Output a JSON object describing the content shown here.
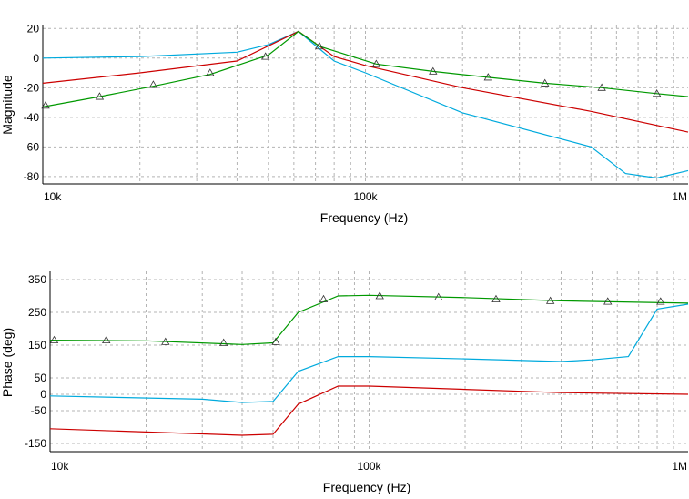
{
  "chart_data": [
    {
      "type": "line",
      "xscale": "log",
      "xlabel": "Frequency (Hz)",
      "ylabel": "Magnitude",
      "xlim": [
        10000,
        1000000
      ],
      "ylim": [
        -85,
        22
      ],
      "grid": true,
      "x_ticks": [
        {
          "value": 10000,
          "label": "10k"
        },
        {
          "value": 100000,
          "label": "100k"
        },
        {
          "value": 1000000,
          "label": "1M"
        }
      ],
      "y_ticks": [
        {
          "value": 20,
          "label": "20"
        },
        {
          "value": 0,
          "label": "0"
        },
        {
          "value": -20,
          "label": "-20"
        },
        {
          "value": -40,
          "label": "-40"
        },
        {
          "value": -60,
          "label": "-60"
        },
        {
          "value": -80,
          "label": "-80"
        }
      ],
      "series": [
        {
          "color": "#00aadd",
          "marker": "none",
          "points": [
            [
              10000,
              0
            ],
            [
              20000,
              1
            ],
            [
              40000,
              4
            ],
            [
              50000,
              9
            ],
            [
              62000,
              18
            ],
            [
              80000,
              -2
            ],
            [
              100000,
              -10
            ],
            [
              200000,
              -37
            ],
            [
              500000,
              -60
            ],
            [
              640000,
              -78
            ],
            [
              800000,
              -81
            ],
            [
              1000000,
              -76
            ]
          ]
        },
        {
          "color": "#cc0000",
          "marker": "none",
          "points": [
            [
              10000,
              -17
            ],
            [
              20000,
              -10
            ],
            [
              40000,
              -2
            ],
            [
              62000,
              18
            ],
            [
              80000,
              1
            ],
            [
              100000,
              -5
            ],
            [
              200000,
              -20
            ],
            [
              500000,
              -36
            ],
            [
              1000000,
              -50
            ]
          ]
        },
        {
          "color": "#009900",
          "marker": "triangle",
          "points": [
            [
              10000,
              -33
            ],
            [
              15000,
              -26
            ],
            [
              22000,
              -19
            ],
            [
              33000,
              -11
            ],
            [
              50000,
              2
            ],
            [
              62000,
              18
            ],
            [
              72000,
              8
            ],
            [
              108000,
              -4
            ],
            [
              162000,
              -9
            ],
            [
              240000,
              -13
            ],
            [
              360000,
              -17
            ],
            [
              540000,
              -20
            ],
            [
              800000,
              -24
            ],
            [
              1000000,
              -26
            ]
          ],
          "marker_points": [
            [
              10200,
              -32
            ],
            [
              15000,
              -26
            ],
            [
              22000,
              -18
            ],
            [
              33000,
              -10
            ],
            [
              49000,
              1
            ],
            [
              72000,
              8
            ],
            [
              108000,
              -4
            ],
            [
              162000,
              -9
            ],
            [
              240000,
              -13
            ],
            [
              360000,
              -17
            ],
            [
              540000,
              -20
            ],
            [
              800000,
              -24
            ]
          ]
        }
      ]
    },
    {
      "type": "line",
      "xscale": "log",
      "xlabel": "Frequency (Hz)",
      "ylabel": "Phase (deg)",
      "xlim": [
        10000,
        1000000
      ],
      "ylim": [
        -175,
        375
      ],
      "grid": true,
      "x_ticks": [
        {
          "value": 10000,
          "label": "10k"
        },
        {
          "value": 100000,
          "label": "100k"
        },
        {
          "value": 1000000,
          "label": "1M"
        }
      ],
      "y_ticks": [
        {
          "value": 350,
          "label": "350"
        },
        {
          "value": 250,
          "label": "250"
        },
        {
          "value": 150,
          "label": "150"
        },
        {
          "value": 50,
          "label": "50"
        },
        {
          "value": 0,
          "label": "0"
        },
        {
          "value": -50,
          "label": "-50"
        },
        {
          "value": -150,
          "label": "-150"
        }
      ],
      "series": [
        {
          "color": "#00aadd",
          "marker": "none",
          "points": [
            [
              10000,
              -5
            ],
            [
              30000,
              -15
            ],
            [
              40000,
              -25
            ],
            [
              50000,
              -22
            ],
            [
              60000,
              70
            ],
            [
              80000,
              115
            ],
            [
              100000,
              115
            ],
            [
              200000,
              108
            ],
            [
              400000,
              100
            ],
            [
              500000,
              105
            ],
            [
              650000,
              115
            ],
            [
              800000,
              260
            ],
            [
              1000000,
              275
            ]
          ]
        },
        {
          "color": "#cc0000",
          "marker": "none",
          "points": [
            [
              10000,
              -105
            ],
            [
              20000,
              -115
            ],
            [
              40000,
              -125
            ],
            [
              50000,
              -122
            ],
            [
              60000,
              -30
            ],
            [
              80000,
              25
            ],
            [
              100000,
              25
            ],
            [
              200000,
              15
            ],
            [
              400000,
              5
            ],
            [
              1000000,
              0
            ]
          ]
        },
        {
          "color": "#009900",
          "marker": "triangle",
          "points": [
            [
              10000,
              165
            ],
            [
              20000,
              163
            ],
            [
              40000,
              152
            ],
            [
              50000,
              157
            ],
            [
              60000,
              250
            ],
            [
              80000,
              300
            ],
            [
              100000,
              302
            ],
            [
              200000,
              295
            ],
            [
              400000,
              285
            ],
            [
              1000000,
              278
            ]
          ],
          "marker_points": [
            [
              10300,
              165
            ],
            [
              15000,
              165
            ],
            [
              23000,
              160
            ],
            [
              35000,
              157
            ],
            [
              51000,
              160
            ],
            [
              72000,
              290
            ],
            [
              108000,
              300
            ],
            [
              165000,
              296
            ],
            [
              250000,
              290
            ],
            [
              370000,
              285
            ],
            [
              560000,
              283
            ],
            [
              820000,
              283
            ]
          ]
        }
      ]
    }
  ]
}
